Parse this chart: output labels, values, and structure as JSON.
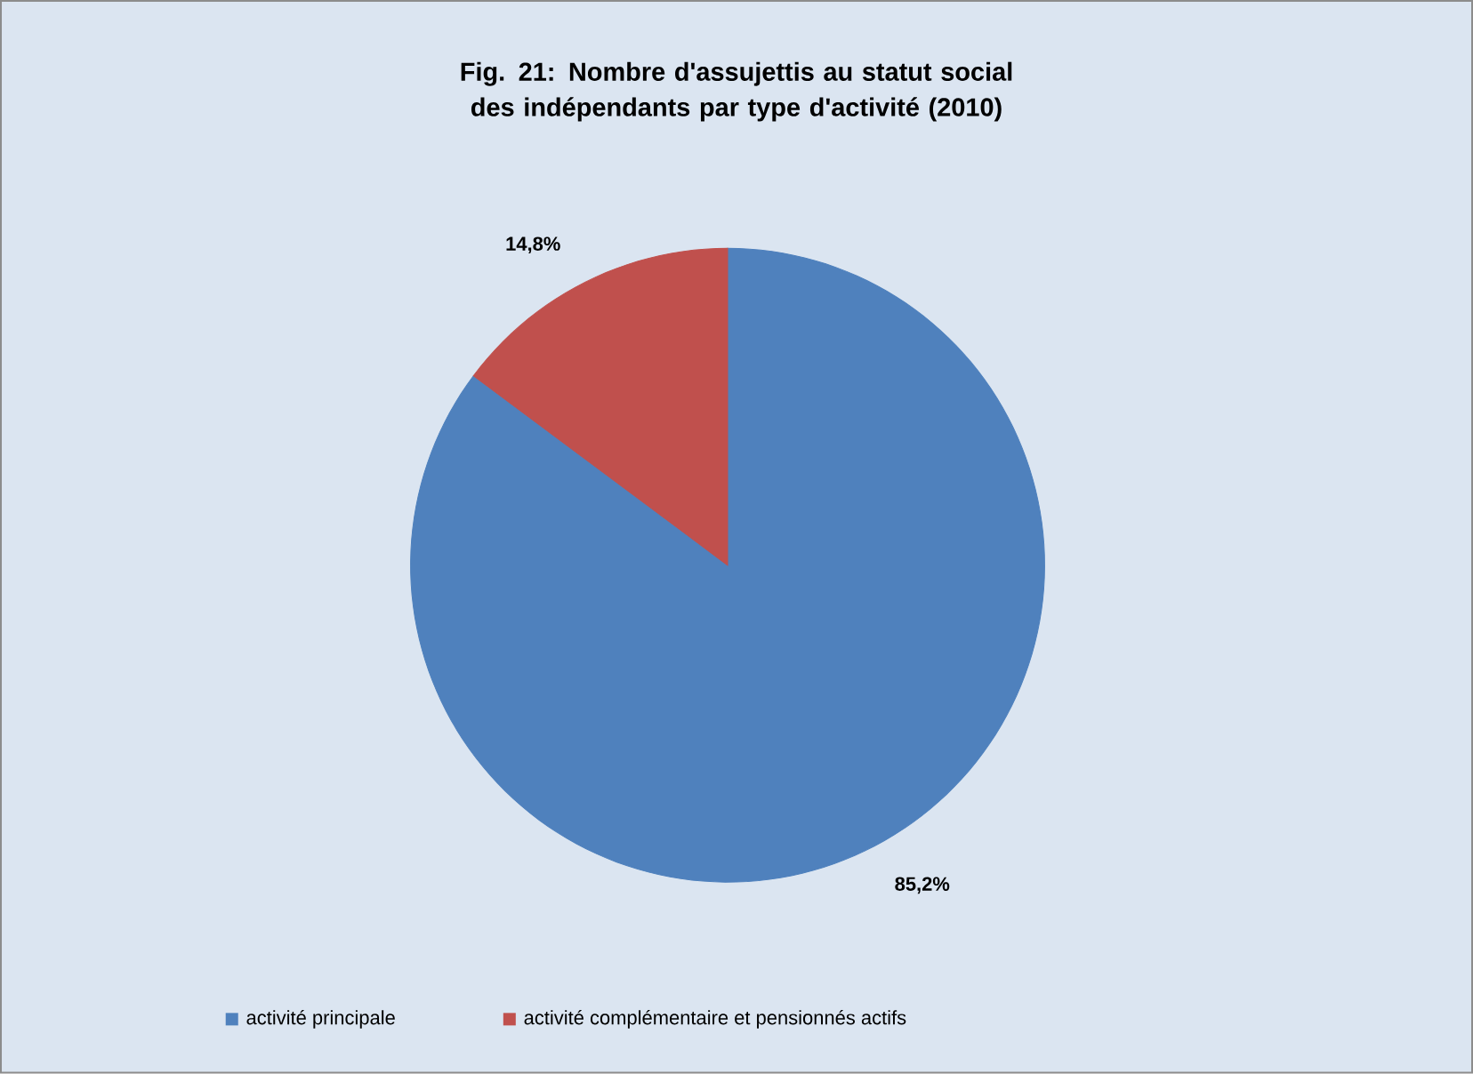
{
  "chart_data": {
    "type": "pie",
    "title": "Fig. 21: Nombre d'assujettis au statut social des indépendants par type d'activité (2010)",
    "categories": [
      "activité principale",
      "activité complémentaire et pensionnés actifs"
    ],
    "values": [
      85.2,
      14.8
    ],
    "colors": [
      "#4f81bd",
      "#c0504d"
    ],
    "value_labels": [
      "85,2%",
      "14,8%"
    ],
    "legend": "bottom"
  }
}
